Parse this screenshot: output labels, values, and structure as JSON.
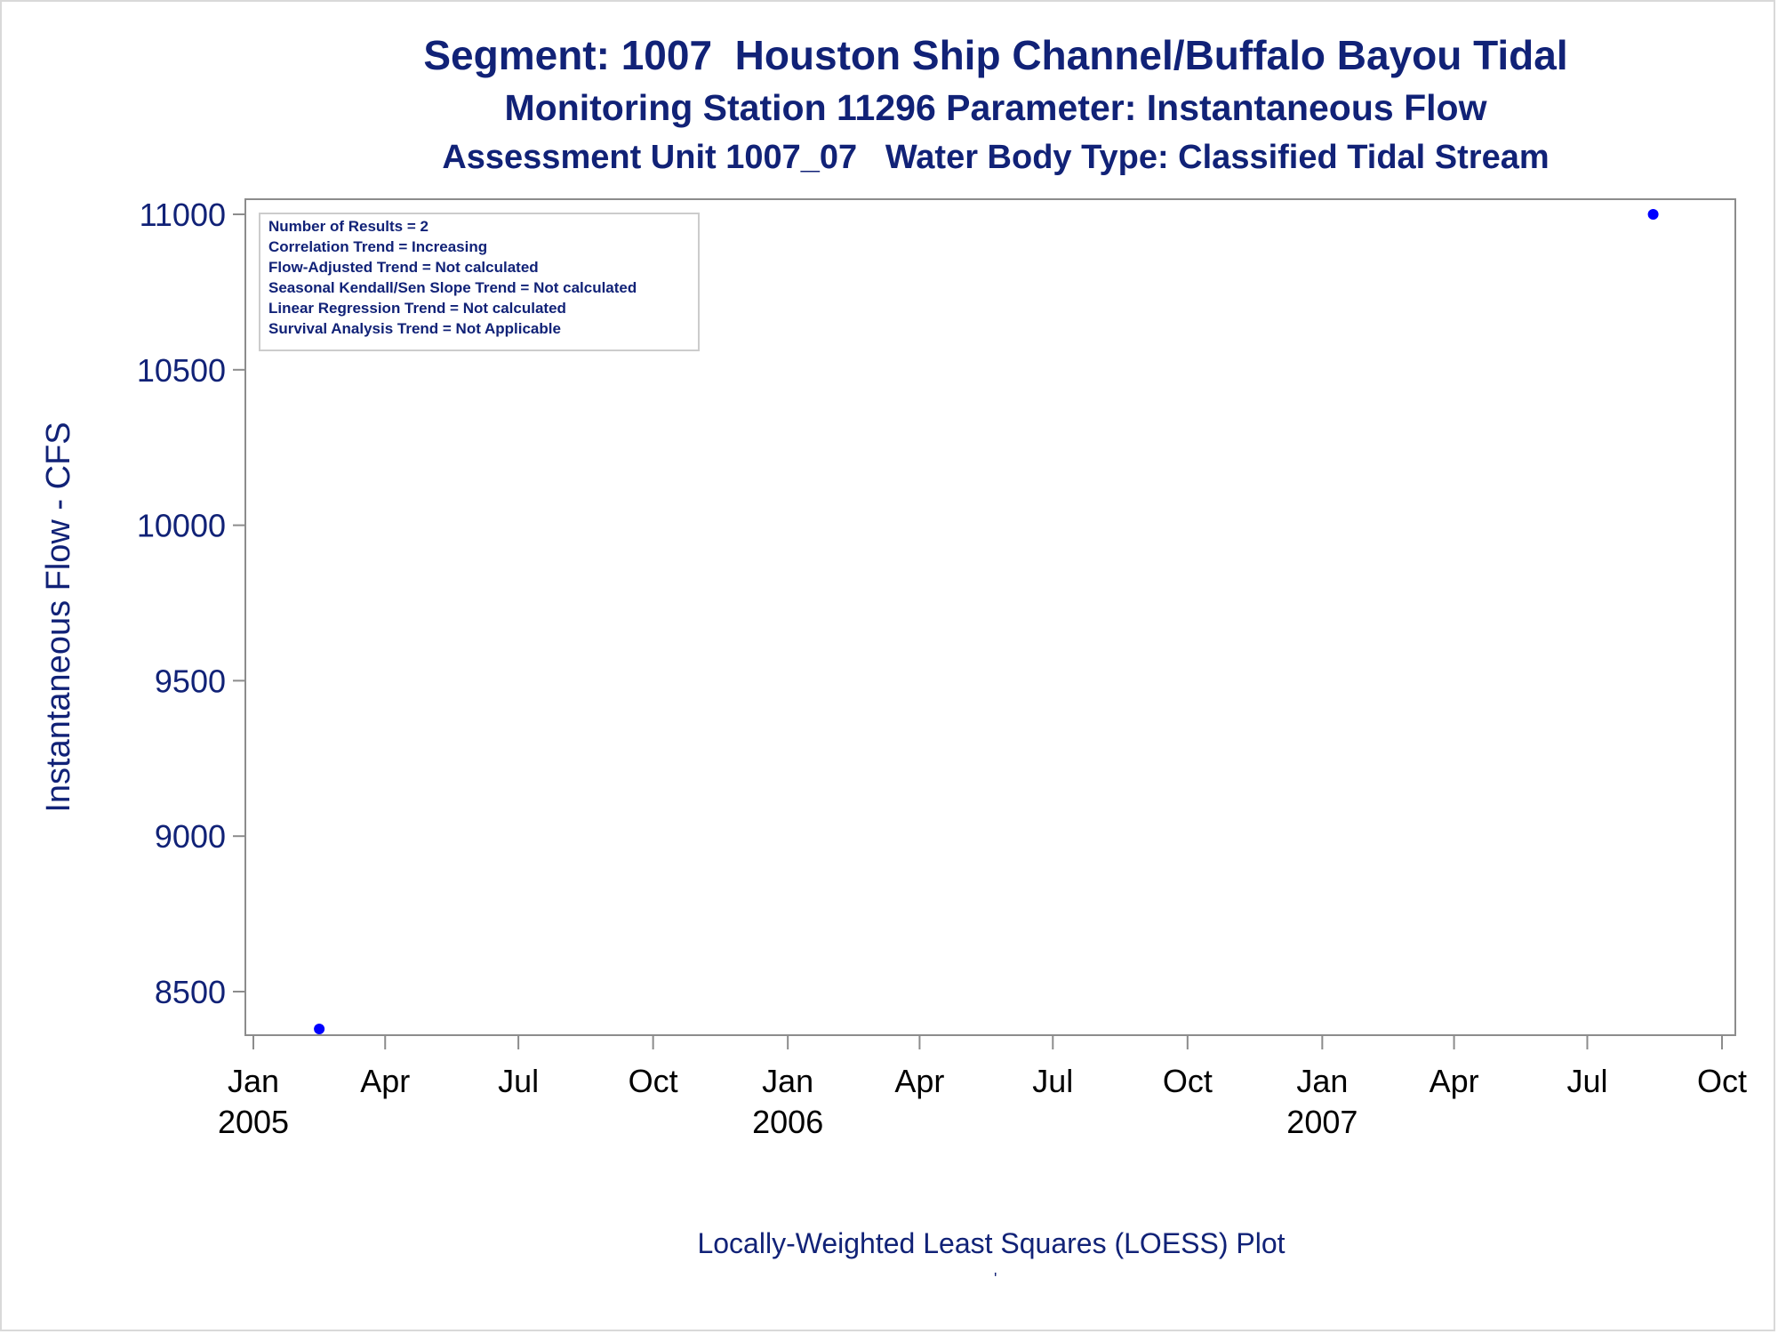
{
  "titles": {
    "line1": "Segment: 1007  Houston Ship Channel/Buffalo Bayou Tidal",
    "line2": "Monitoring Station 11296 Parameter: Instantaneous Flow",
    "line3": "Assessment Unit 1007_07   Water Body Type: Classified Tidal Stream"
  },
  "footnote": "Locally-Weighted Least Squares (LOESS) Plot",
  "footnote_mark": "'",
  "colors": {
    "text": "#112277",
    "point": "#0000ff",
    "axis": "#8c8c8c"
  },
  "chart_data": {
    "type": "scatter",
    "title": "Segment: 1007  Houston Ship Channel/Buffalo Bayou Tidal",
    "ylabel": "Instantaneous Flow - CFS",
    "xlabel": "",
    "ylim": [
      8350,
      11050
    ],
    "y_ticks": [
      8500,
      9000,
      9500,
      10000,
      10500,
      11000
    ],
    "xlim": [
      "2005-01-01",
      "2007-10-01"
    ],
    "x_ticks": [
      {
        "date": "2005-01-01",
        "label": "Jan",
        "year": "2005"
      },
      {
        "date": "2005-04-01",
        "label": "Apr",
        "year": ""
      },
      {
        "date": "2005-07-01",
        "label": "Jul",
        "year": ""
      },
      {
        "date": "2005-10-01",
        "label": "Oct",
        "year": ""
      },
      {
        "date": "2006-01-01",
        "label": "Jan",
        "year": "2006"
      },
      {
        "date": "2006-04-01",
        "label": "Apr",
        "year": ""
      },
      {
        "date": "2006-07-01",
        "label": "Jul",
        "year": ""
      },
      {
        "date": "2006-10-01",
        "label": "Oct",
        "year": ""
      },
      {
        "date": "2007-01-01",
        "label": "Jan",
        "year": "2007"
      },
      {
        "date": "2007-04-01",
        "label": "Apr",
        "year": ""
      },
      {
        "date": "2007-07-01",
        "label": "Jul",
        "year": ""
      },
      {
        "date": "2007-10-01",
        "label": "Oct",
        "year": ""
      }
    ],
    "points": [
      {
        "x": "2005-02-15",
        "y": 8380
      },
      {
        "x": "2007-08-15",
        "y": 11000
      }
    ],
    "grid": false,
    "stats_box": [
      "Number of Results = 2",
      "Correlation Trend = Increasing",
      "Flow-Adjusted Trend = Not calculated",
      "Seasonal Kendall/Sen Slope Trend = Not calculated",
      "Linear Regression Trend = Not calculated",
      "Survival Analysis Trend = Not Applicable"
    ],
    "stats_box_position": "top-left"
  }
}
